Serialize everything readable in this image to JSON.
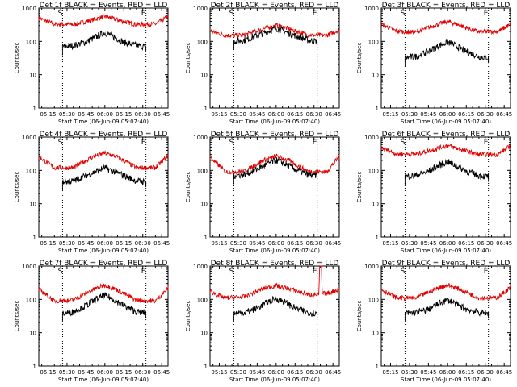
{
  "colors": {
    "events": "#000000",
    "lld": "#e00000",
    "axis": "#000000",
    "background": "#ffffff"
  },
  "shared": {
    "xlabel": "Start Time (06-Jun-09 05:07:40)",
    "ylabel": "Counts/sec",
    "xticks": [
      "05:15",
      "05:30",
      "05:45",
      "06:00",
      "06:15",
      "06:30",
      "06:45"
    ],
    "xtick_minutes": [
      15,
      30,
      45,
      60,
      75,
      90,
      105
    ],
    "xlim_minutes": [
      7.67,
      110
    ],
    "yticks": [
      "1",
      "10",
      "100",
      "1000"
    ],
    "ytick_values": [
      1,
      10,
      100,
      1000
    ],
    "ylim": [
      1,
      1000
    ],
    "yscale": "log",
    "marker_left": "S",
    "marker_right": "E",
    "marker_minutes": [
      26.5,
      92.5
    ],
    "series_names": [
      "Events",
      "LLD"
    ]
  },
  "chart_data": [
    {
      "type": "line",
      "title": "Det 1f BLACK = Events, RED = LLD",
      "series": [
        {
          "name": "Events",
          "x": [
            26.5,
            35,
            45,
            55,
            60,
            65,
            75,
            85,
            92.5
          ],
          "values": [
            70,
            75,
            95,
            150,
            180,
            150,
            95,
            75,
            70
          ]
        },
        {
          "name": "LLD",
          "x": [
            7.67,
            20,
            35,
            50,
            60,
            70,
            85,
            100,
            110
          ],
          "values": [
            500,
            330,
            320,
            440,
            560,
            440,
            320,
            330,
            550
          ]
        }
      ]
    },
    {
      "type": "line",
      "title": "Det 2f BLACK = Events, RED = LLD",
      "series": [
        {
          "name": "Events",
          "x": [
            26.5,
            35,
            45,
            55,
            60,
            65,
            75,
            85,
            92.5
          ],
          "values": [
            100,
            110,
            150,
            210,
            250,
            210,
            150,
            110,
            100
          ]
        },
        {
          "name": "LLD",
          "x": [
            7.67,
            20,
            35,
            50,
            60,
            70,
            85,
            100,
            110
          ],
          "values": [
            210,
            150,
            155,
            240,
            300,
            240,
            155,
            150,
            220
          ]
        }
      ]
    },
    {
      "type": "line",
      "title": "Det 3f BLACK = Events, RED = LLD",
      "series": [
        {
          "name": "Events",
          "x": [
            26.5,
            35,
            45,
            55,
            60,
            65,
            75,
            85,
            92.5
          ],
          "values": [
            32,
            35,
            50,
            80,
            95,
            80,
            50,
            35,
            32
          ]
        },
        {
          "name": "LLD",
          "x": [
            7.67,
            20,
            35,
            50,
            60,
            70,
            85,
            100,
            110
          ],
          "values": [
            330,
            200,
            190,
            300,
            400,
            300,
            190,
            200,
            320
          ]
        }
      ]
    },
    {
      "type": "line",
      "title": "Det 4f BLACK = Events, RED = LLD",
      "series": [
        {
          "name": "Events",
          "x": [
            26.5,
            35,
            45,
            55,
            60,
            65,
            75,
            85,
            92.5
          ],
          "values": [
            45,
            48,
            70,
            100,
            120,
            100,
            70,
            48,
            45
          ]
        },
        {
          "name": "LLD",
          "x": [
            7.67,
            20,
            35,
            50,
            60,
            70,
            85,
            100,
            110
          ],
          "values": [
            260,
            120,
            120,
            250,
            330,
            250,
            120,
            120,
            280
          ]
        }
      ]
    },
    {
      "type": "line",
      "title": "Det 5f BLACK = Events, RED = LLD",
      "series": [
        {
          "name": "Events",
          "x": [
            26.5,
            35,
            45,
            55,
            60,
            65,
            75,
            85,
            92.5
          ],
          "values": [
            70,
            75,
            110,
            170,
            200,
            170,
            110,
            75,
            70
          ]
        },
        {
          "name": "LLD",
          "x": [
            7.67,
            20,
            35,
            50,
            60,
            70,
            85,
            100,
            110
          ],
          "values": [
            250,
            90,
            95,
            200,
            270,
            200,
            95,
            90,
            260
          ]
        }
      ]
    },
    {
      "type": "line",
      "title": "Det 6f BLACK = Events, RED = LLD",
      "series": [
        {
          "name": "Events",
          "x": [
            26.5,
            35,
            45,
            55,
            60,
            65,
            75,
            85,
            92.5
          ],
          "values": [
            65,
            70,
            95,
            150,
            180,
            150,
            95,
            70,
            65
          ]
        },
        {
          "name": "LLD",
          "x": [
            7.67,
            20,
            35,
            50,
            60,
            70,
            85,
            100,
            110
          ],
          "values": [
            480,
            310,
            310,
            430,
            560,
            430,
            300,
            300,
            540
          ]
        }
      ]
    },
    {
      "type": "line",
      "title": "Det 7f BLACK = Events, RED = LLD",
      "series": [
        {
          "name": "Events",
          "x": [
            26.5,
            35,
            45,
            55,
            60,
            65,
            75,
            85,
            92.5
          ],
          "values": [
            38,
            42,
            65,
            110,
            130,
            110,
            65,
            42,
            40
          ]
        },
        {
          "name": "LLD",
          "x": [
            7.67,
            20,
            35,
            50,
            60,
            70,
            85,
            100,
            110
          ],
          "values": [
            200,
            90,
            95,
            190,
            270,
            190,
            95,
            90,
            210
          ]
        }
      ]
    },
    {
      "type": "line",
      "title": "Det 8f BLACK = Events, RED = LLD",
      "series": [
        {
          "name": "Events",
          "x": [
            26.5,
            35,
            45,
            55,
            60,
            65,
            75,
            85,
            92.5
          ],
          "values": [
            38,
            40,
            55,
            90,
            105,
            90,
            55,
            40,
            38
          ]
        },
        {
          "name": "LLD",
          "x": [
            7.67,
            20,
            35,
            50,
            60,
            70,
            85,
            94,
            94.3,
            96,
            96.3,
            100,
            110
          ],
          "values": [
            170,
            110,
            120,
            210,
            260,
            210,
            140,
            140,
            1000,
            1000,
            150,
            150,
            200
          ]
        }
      ]
    },
    {
      "type": "line",
      "title": "Det 9f BLACK = Events, RED = LLD",
      "series": [
        {
          "name": "Events",
          "x": [
            26.5,
            35,
            45,
            55,
            60,
            65,
            75,
            85,
            92.5
          ],
          "values": [
            38,
            40,
            50,
            80,
            95,
            80,
            50,
            40,
            38
          ]
        },
        {
          "name": "LLD",
          "x": [
            7.67,
            20,
            35,
            50,
            60,
            70,
            85,
            100,
            110
          ],
          "values": [
            200,
            110,
            110,
            200,
            270,
            200,
            110,
            115,
            230
          ]
        }
      ]
    }
  ]
}
